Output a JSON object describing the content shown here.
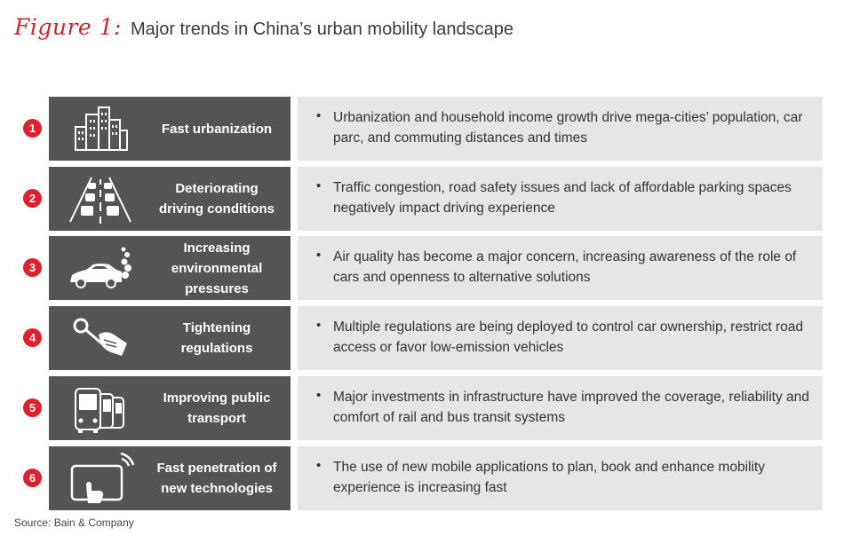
{
  "figure": {
    "label": "Figure 1:",
    "title": "Major trends in China’s urban mobility landscape"
  },
  "trends": [
    {
      "number": "1",
      "icon": "buildings-icon",
      "title": "Fast urbanization",
      "description": "Urbanization and household income growth drive mega-cities’ population, car parc, and commuting distances and times"
    },
    {
      "number": "2",
      "icon": "traffic-jam-icon",
      "title": "Deteriorating\ndriving conditions",
      "description": "Traffic congestion, road safety issues and lack of affordable parking spaces negatively impact driving experience"
    },
    {
      "number": "3",
      "icon": "car-exhaust-icon",
      "title": "Increasing\nenvironmental\npressures",
      "description": "Air quality has become a major concern, increasing awareness of the role of cars and openness to alternative solutions"
    },
    {
      "number": "4",
      "icon": "hand-wrench-icon",
      "title": "Tightening\nregulations",
      "description": "Multiple regulations are being deployed to control car ownership, restrict road access or favor low-emission vehicles"
    },
    {
      "number": "5",
      "icon": "buses-icon",
      "title": "Improving public\ntransport",
      "description": "Major investments in infrastructure have improved the coverage, reliability and comfort of rail and bus transit systems"
    },
    {
      "number": "6",
      "icon": "tablet-touch-icon",
      "title": "Fast penetration of\nnew technologies",
      "description": "The use of new mobile applications to plan, book and enhance mobility experience is increasing fast"
    }
  ],
  "bullet_glyph": "•",
  "source": "Source: Bain & Company",
  "colors": {
    "accent": "#e0202a",
    "dark_panel": "#545454",
    "light_panel": "#e6e6e6"
  }
}
